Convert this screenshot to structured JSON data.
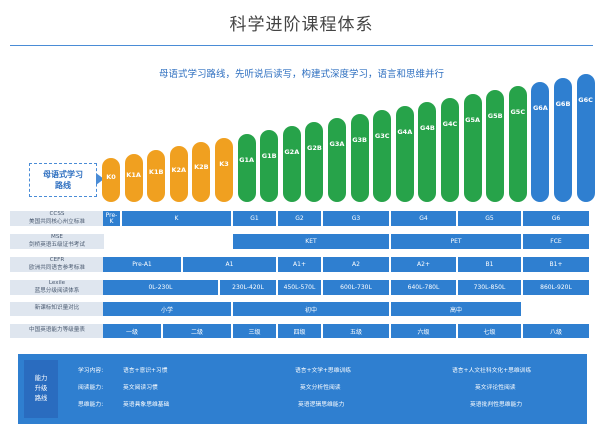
{
  "header": {
    "title": "科学进阶课程体系",
    "subtitle": "母语式学习路线，先听说后读写，构建式深度学习，语言和思维并行"
  },
  "path_label": {
    "line1": "母语式学习",
    "line2": "路线"
  },
  "levels": [
    {
      "label": "K0",
      "color": "#f0a020"
    },
    {
      "label": "K1A",
      "color": "#f0a020"
    },
    {
      "label": "K1B",
      "color": "#f0a020"
    },
    {
      "label": "K2A",
      "color": "#f0a020"
    },
    {
      "label": "K2B",
      "color": "#f0a020"
    },
    {
      "label": "K3",
      "color": "#f0a020"
    },
    {
      "label": "G1A",
      "color": "#27a34a"
    },
    {
      "label": "G1B",
      "color": "#27a34a"
    },
    {
      "label": "G2A",
      "color": "#27a34a"
    },
    {
      "label": "G2B",
      "color": "#27a34a"
    },
    {
      "label": "G3A",
      "color": "#27a34a"
    },
    {
      "label": "G3B",
      "color": "#27a34a"
    },
    {
      "label": "G3C",
      "color": "#27a34a"
    },
    {
      "label": "G4A",
      "color": "#27a34a"
    },
    {
      "label": "G4B",
      "color": "#27a34a"
    },
    {
      "label": "G4C",
      "color": "#27a34a"
    },
    {
      "label": "G5A",
      "color": "#27a34a"
    },
    {
      "label": "G5B",
      "color": "#27a34a"
    },
    {
      "label": "G5C",
      "color": "#27a34a"
    },
    {
      "label": "G6A",
      "color": "#2f7fd0"
    },
    {
      "label": "G6B",
      "color": "#2f7fd0"
    },
    {
      "label": "G6C",
      "color": "#2f7fd0"
    }
  ],
  "rows": [
    {
      "label1": "CCSS",
      "label2": "美国共同核心州立标准",
      "cells": [
        {
          "text": "Pre-\nK"
        },
        {
          "text": "K"
        },
        {
          "text": "G1"
        },
        {
          "text": "G2"
        },
        {
          "text": "G3"
        },
        {
          "text": "G4"
        },
        {
          "text": "G5"
        },
        {
          "text": "G6"
        }
      ]
    },
    {
      "label1": "MSE",
      "label2": "剑桥英语五级证书考试",
      "cells": [
        {
          "text": "KET"
        },
        {
          "text": "PET"
        },
        {
          "text": "FCE"
        }
      ]
    },
    {
      "label1": "CEFR",
      "label2": "欧洲共同语言参考标准",
      "cells": [
        {
          "text": "Pre-A1"
        },
        {
          "text": "A1"
        },
        {
          "text": "A1+"
        },
        {
          "text": "A2"
        },
        {
          "text": "A2+"
        },
        {
          "text": "B1"
        },
        {
          "text": "B1+"
        }
      ]
    },
    {
      "label1": "Lexile",
      "label2": "蓝思分级阅读体系",
      "cells": [
        {
          "text": "0L-230L"
        },
        {
          "text": "230L-420L"
        },
        {
          "text": "450L-570L"
        },
        {
          "text": "600L-730L"
        },
        {
          "text": "640L-780L"
        },
        {
          "text": "730L-850L"
        },
        {
          "text": "860L-920L"
        }
      ]
    },
    {
      "label1": "新课标知识量对比",
      "label2": "",
      "cells": [
        {
          "text": "小学"
        },
        {
          "text": "初中"
        },
        {
          "text": "高中"
        }
      ]
    },
    {
      "label1": "中国英语能力等级量表",
      "label2": "",
      "cells": [
        {
          "text": "一级"
        },
        {
          "text": "二级"
        },
        {
          "text": "三级"
        },
        {
          "text": "四级"
        },
        {
          "text": "五级"
        },
        {
          "text": "六级"
        },
        {
          "text": "七级"
        },
        {
          "text": "八级"
        }
      ]
    }
  ],
  "ability": {
    "title_lines": [
      "能力",
      "升级",
      "路线"
    ],
    "row_labels": [
      "学习内容:",
      "阅读能力:",
      "思维能力:"
    ],
    "col1": [
      "语言+意识+习惯",
      "英文阅读习惯",
      "英语具象思维基础"
    ],
    "col2": [
      "语言+文学+思维训练",
      "英文分析性阅读",
      "英语逻辑思维能力"
    ],
    "col3": [
      "语言+人文社科文化+思维训练",
      "英文评论性阅读",
      "英语批判性思维能力"
    ]
  },
  "colors": {
    "orange": "#f0a020",
    "green": "#27a34a",
    "blue": "#2f7fd0",
    "title_blue": "#2e6fc0"
  }
}
